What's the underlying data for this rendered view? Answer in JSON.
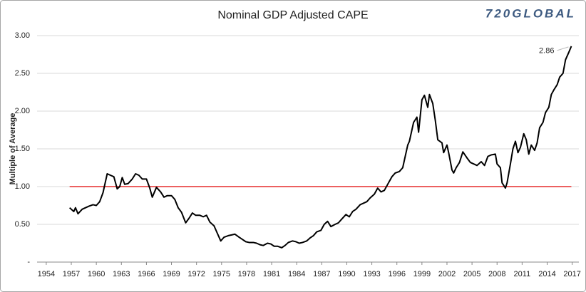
{
  "chart_data": {
    "type": "line",
    "title": "Nominal GDP Adjusted CAPE",
    "logo": "720GLOBAL",
    "ylabel": "Multiple of Average",
    "color": "#000000",
    "grid": true,
    "reference_line": {
      "value": 1,
      "color": "#e00000"
    },
    "last_value_label": "2.86",
    "xlim": [
      1952.9,
      2017.8
    ],
    "xticks": [
      1954,
      1957,
      1960,
      1963,
      1966,
      1969,
      1972,
      1975,
      1978,
      1981,
      1984,
      1987,
      1990,
      1993,
      1996,
      1999,
      2002,
      2005,
      2008,
      2011,
      2014,
      2017
    ],
    "ylim": [
      0,
      3
    ],
    "yticks": [
      {
        "value": 0,
        "label": "-"
      },
      {
        "value": 0.5,
        "label": "0.50"
      },
      {
        "value": 1,
        "label": "1.00"
      },
      {
        "value": 1.5,
        "label": "1.50"
      },
      {
        "value": 2,
        "label": "2.00"
      },
      {
        "value": 2.5,
        "label": "2.50"
      },
      {
        "value": 3,
        "label": "3.00"
      }
    ],
    "x": [
      1956.8,
      1957.3,
      1957.5,
      1957.8,
      1958.3,
      1959.1,
      1959.6,
      1960.0,
      1960.4,
      1960.8,
      1961.3,
      1961.7,
      1962.1,
      1962.5,
      1962.8,
      1963.1,
      1963.4,
      1963.8,
      1964.3,
      1964.7,
      1965.1,
      1965.5,
      1966.0,
      1966.4,
      1966.7,
      1967.2,
      1967.7,
      1968.1,
      1968.5,
      1969.0,
      1969.4,
      1969.8,
      1970.2,
      1970.7,
      1971.1,
      1971.5,
      1971.9,
      1972.4,
      1972.8,
      1973.2,
      1973.6,
      1974.1,
      1974.5,
      1974.9,
      1975.3,
      1975.8,
      1976.2,
      1976.6,
      1977.1,
      1977.5,
      1977.9,
      1978.3,
      1978.8,
      1979.2,
      1979.6,
      1980.0,
      1980.5,
      1980.9,
      1981.3,
      1981.7,
      1982.2,
      1982.6,
      1983.0,
      1983.5,
      1983.9,
      1984.3,
      1984.7,
      1985.2,
      1985.6,
      1986.0,
      1986.4,
      1986.9,
      1987.3,
      1987.7,
      1988.1,
      1988.6,
      1989.0,
      1989.4,
      1989.9,
      1990.3,
      1990.7,
      1991.1,
      1991.6,
      1992.0,
      1992.4,
      1992.8,
      1993.3,
      1993.7,
      1994.1,
      1994.5,
      1995.0,
      1995.4,
      1995.8,
      1996.3,
      1996.7,
      1996.9,
      1997.3,
      1997.5,
      1998.0,
      1998.4,
      1998.6,
      1999.0,
      1999.3,
      1999.7,
      1999.9,
      2000.3,
      2000.6,
      2000.9,
      2001.4,
      2001.6,
      2002.0,
      2002.2,
      2002.6,
      2002.8,
      2003.1,
      2003.5,
      2003.9,
      2004.4,
      2004.8,
      2005.2,
      2005.6,
      2006.1,
      2006.5,
      2006.9,
      2007.3,
      2007.8,
      2008.0,
      2008.4,
      2008.6,
      2009.0,
      2009.2,
      2009.6,
      2009.9,
      2010.2,
      2010.5,
      2010.8,
      2011.2,
      2011.5,
      2011.8,
      2012.1,
      2012.5,
      2012.8,
      2013.1,
      2013.5,
      2013.8,
      2014.2,
      2014.5,
      2014.8,
      2015.2,
      2015.5,
      2015.9,
      2016.2,
      2016.6,
      2016.9
    ],
    "values": [
      0.72,
      0.67,
      0.72,
      0.64,
      0.7,
      0.74,
      0.76,
      0.75,
      0.8,
      0.92,
      1.17,
      1.15,
      1.13,
      0.97,
      1.0,
      1.12,
      1.03,
      1.04,
      1.1,
      1.17,
      1.15,
      1.1,
      1.1,
      0.98,
      0.86,
      0.99,
      0.93,
      0.86,
      0.88,
      0.88,
      0.83,
      0.72,
      0.66,
      0.52,
      0.58,
      0.65,
      0.62,
      0.62,
      0.6,
      0.62,
      0.53,
      0.48,
      0.38,
      0.28,
      0.33,
      0.35,
      0.36,
      0.37,
      0.33,
      0.3,
      0.27,
      0.26,
      0.26,
      0.25,
      0.23,
      0.22,
      0.25,
      0.24,
      0.21,
      0.21,
      0.19,
      0.22,
      0.26,
      0.28,
      0.27,
      0.25,
      0.26,
      0.28,
      0.32,
      0.35,
      0.4,
      0.42,
      0.5,
      0.54,
      0.47,
      0.5,
      0.52,
      0.57,
      0.63,
      0.6,
      0.67,
      0.7,
      0.76,
      0.78,
      0.8,
      0.85,
      0.9,
      0.98,
      0.93,
      0.95,
      1.05,
      1.13,
      1.18,
      1.2,
      1.25,
      1.35,
      1.55,
      1.6,
      1.85,
      1.92,
      1.72,
      2.15,
      2.21,
      2.05,
      2.22,
      2.1,
      1.88,
      1.62,
      1.58,
      1.45,
      1.55,
      1.45,
      1.22,
      1.18,
      1.25,
      1.32,
      1.46,
      1.38,
      1.32,
      1.3,
      1.28,
      1.33,
      1.28,
      1.4,
      1.42,
      1.43,
      1.3,
      1.25,
      1.05,
      0.98,
      1.05,
      1.3,
      1.5,
      1.6,
      1.45,
      1.52,
      1.7,
      1.62,
      1.43,
      1.55,
      1.48,
      1.58,
      1.78,
      1.85,
      1.98,
      2.05,
      2.22,
      2.28,
      2.35,
      2.45,
      2.5,
      2.68,
      2.78,
      2.86
    ]
  }
}
